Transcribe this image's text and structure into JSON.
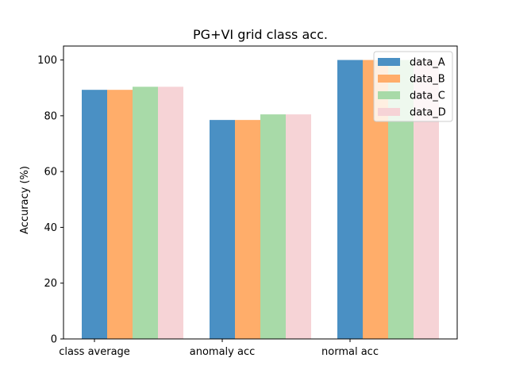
{
  "chart_data": {
    "type": "bar",
    "title": "PG+VI grid class acc.",
    "xlabel": "",
    "ylabel": "Accuracy (%)",
    "categories": [
      "class average",
      "anomaly acc",
      "normal acc"
    ],
    "ylim": [
      0,
      105
    ],
    "yticks": [
      0,
      20,
      40,
      60,
      80,
      100
    ],
    "grid": false,
    "legend_position": "top-right",
    "series": [
      {
        "name": "data_A",
        "color": "#4a90c4",
        "values": [
          89.3,
          78.5,
          100.0
        ]
      },
      {
        "name": "data_B",
        "color": "#ffad6a",
        "values": [
          89.3,
          78.5,
          100.0
        ]
      },
      {
        "name": "data_C",
        "color": "#a8daa8",
        "values": [
          90.4,
          80.5,
          100.0
        ]
      },
      {
        "name": "data_D",
        "color": "#f6d3d6",
        "values": [
          90.4,
          80.5,
          100.0
        ]
      }
    ]
  }
}
